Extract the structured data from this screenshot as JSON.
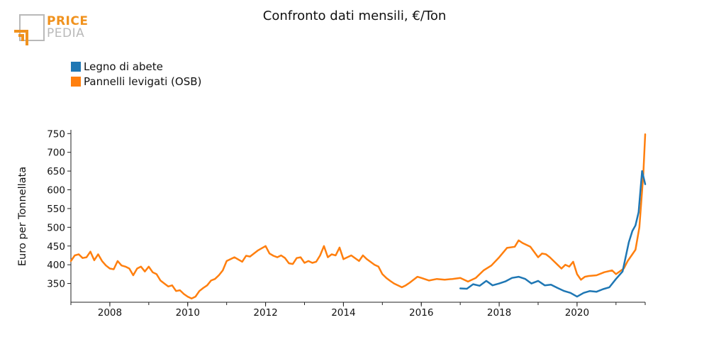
{
  "title": "Confronto dati mensili, €/Ton",
  "logo": {
    "line1": "PRICE",
    "line2": "PEDIA"
  },
  "colors": {
    "abete": "#1f77b4",
    "osb": "#ff7f0e",
    "logo_orange": "#f0921e",
    "logo_gray": "#b9b9b9"
  },
  "chart_data": {
    "type": "line",
    "title": "Confronto dati mensili, €/Ton",
    "ylabel": "Euro per Tonnellata",
    "xlabel": "",
    "xlim": [
      2007.0,
      2021.75
    ],
    "ylim": [
      300,
      760
    ],
    "x_ticks": [
      2008,
      2010,
      2012,
      2014,
      2016,
      2018,
      2020
    ],
    "y_ticks": [
      350,
      400,
      450,
      500,
      550,
      600,
      650,
      700,
      750
    ],
    "legend_position": "top-left",
    "grid": false,
    "series": [
      {
        "name": "Legno di abete",
        "color": "#1f77b4",
        "x": [
          2017.0,
          2017.17,
          2017.33,
          2017.5,
          2017.67,
          2017.83,
          2018.0,
          2018.17,
          2018.33,
          2018.5,
          2018.67,
          2018.83,
          2019.0,
          2019.17,
          2019.33,
          2019.5,
          2019.67,
          2019.83,
          2020.0,
          2020.17,
          2020.33,
          2020.5,
          2020.67,
          2020.83,
          2021.0,
          2021.17,
          2021.33,
          2021.42,
          2021.5,
          2021.58,
          2021.67,
          2021.75
        ],
        "values": [
          337,
          336,
          348,
          344,
          357,
          345,
          350,
          356,
          365,
          368,
          362,
          350,
          357,
          345,
          347,
          338,
          330,
          325,
          315,
          325,
          330,
          328,
          335,
          340,
          362,
          382,
          460,
          490,
          505,
          540,
          650,
          615
        ]
      },
      {
        "name": "Pannelli levigati (OSB)",
        "color": "#ff7f0e",
        "x": [
          2007.0,
          2007.1,
          2007.2,
          2007.3,
          2007.4,
          2007.5,
          2007.6,
          2007.7,
          2007.8,
          2007.9,
          2008.0,
          2008.1,
          2008.2,
          2008.3,
          2008.4,
          2008.5,
          2008.6,
          2008.7,
          2008.8,
          2008.9,
          2009.0,
          2009.1,
          2009.2,
          2009.3,
          2009.4,
          2009.5,
          2009.6,
          2009.7,
          2009.8,
          2009.9,
          2010.0,
          2010.1,
          2010.2,
          2010.3,
          2010.4,
          2010.5,
          2010.6,
          2010.7,
          2010.8,
          2010.9,
          2011.0,
          2011.2,
          2011.4,
          2011.5,
          2011.6,
          2011.8,
          2012.0,
          2012.1,
          2012.2,
          2012.3,
          2012.4,
          2012.5,
          2012.6,
          2012.7,
          2012.8,
          2012.9,
          2013.0,
          2013.1,
          2013.2,
          2013.3,
          2013.4,
          2013.5,
          2013.6,
          2013.7,
          2013.8,
          2013.9,
          2014.0,
          2014.2,
          2014.4,
          2014.5,
          2014.6,
          2014.8,
          2014.9,
          2015.0,
          2015.1,
          2015.2,
          2015.3,
          2015.4,
          2015.5,
          2015.6,
          2015.7,
          2015.8,
          2015.9,
          2016.0,
          2016.2,
          2016.4,
          2016.6,
          2016.8,
          2017.0,
          2017.2,
          2017.4,
          2017.6,
          2017.8,
          2018.0,
          2018.2,
          2018.4,
          2018.5,
          2018.6,
          2018.8,
          2019.0,
          2019.1,
          2019.2,
          2019.3,
          2019.4,
          2019.5,
          2019.6,
          2019.7,
          2019.8,
          2019.9,
          2020.0,
          2020.1,
          2020.2,
          2020.3,
          2020.5,
          2020.7,
          2020.9,
          2021.0,
          2021.2,
          2021.3,
          2021.4,
          2021.5,
          2021.6,
          2021.7,
          2021.75
        ],
        "values": [
          410,
          425,
          428,
          418,
          420,
          435,
          412,
          428,
          410,
          398,
          390,
          388,
          410,
          398,
          395,
          390,
          372,
          390,
          395,
          382,
          395,
          380,
          375,
          358,
          350,
          342,
          345,
          330,
          332,
          322,
          315,
          310,
          315,
          330,
          338,
          345,
          358,
          362,
          372,
          385,
          410,
          420,
          408,
          424,
          422,
          438,
          450,
          430,
          424,
          420,
          425,
          418,
          404,
          402,
          418,
          420,
          405,
          410,
          405,
          408,
          425,
          450,
          420,
          428,
          425,
          446,
          415,
          425,
          410,
          425,
          415,
          400,
          395,
          375,
          365,
          357,
          350,
          345,
          340,
          345,
          352,
          360,
          368,
          365,
          358,
          362,
          360,
          362,
          365,
          355,
          365,
          385,
          398,
          420,
          445,
          448,
          465,
          458,
          448,
          420,
          430,
          428,
          420,
          410,
          400,
          390,
          400,
          395,
          408,
          375,
          360,
          368,
          370,
          372,
          380,
          385,
          375,
          390,
          410,
          425,
          440,
          500,
          640,
          748
        ]
      }
    ]
  }
}
